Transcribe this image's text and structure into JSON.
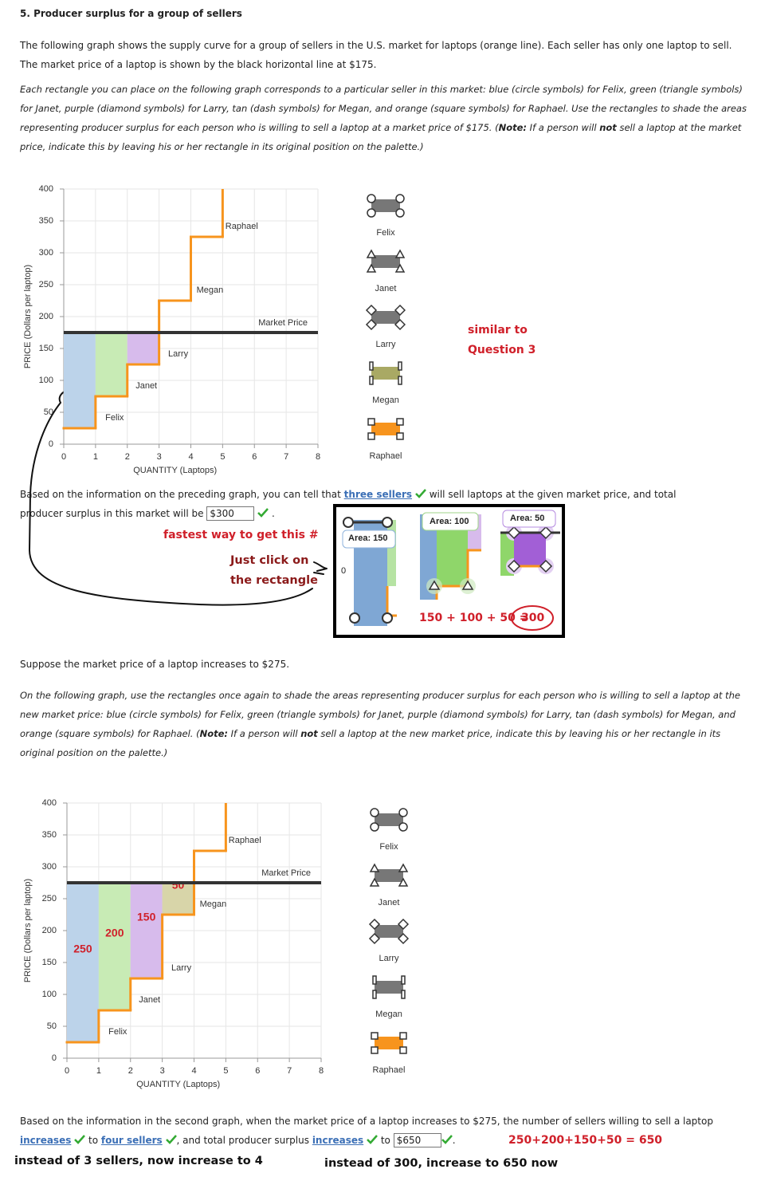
{
  "title": "5. Producer surplus for a group of sellers",
  "intro": "The following graph shows the supply curve for a group of sellers in the U.S. market for laptops (orange line). Each seller has only one laptop to sell. The market price of a laptop is shown by the black horizontal line at $175.",
  "instructions1": [
    "Each rectangle you can place on the following graph corresponds to a particular seller in this market: blue (circle symbols) for Felix, green (triangle symbols) for Janet, purple (diamond symbols) for Larry, tan (dash symbols) for Megan, and orange (square symbols) for Raphael. Use the rectangles to shade the areas representing producer surplus for each person who is willing to sell a laptop at a market price of $175. (",
    "Note:",
    " If a person will ",
    "not",
    " sell a laptop at the market price, indicate this by leaving his or her rectangle in its original position on the palette.)"
  ],
  "answer1": {
    "before": "Based on the information on the preceding graph, you can tell that",
    "sellers": "three sellers",
    "middle": "will sell laptops at the given market price, and total producer surplus in this market will be",
    "surplus": "$300",
    "end": "."
  },
  "annotations": {
    "fastest": "fastest way to get this #",
    "click": [
      "Just click on",
      "the rectangle"
    ],
    "similar": [
      "similar to",
      "Question 3"
    ],
    "sum2": "250+200+150+50 = 650",
    "note_sellers": "instead of 3 sellers, now increase to 4",
    "note_surplus": "instead of 300, increase to 650 now"
  },
  "inset": {
    "areas": [
      "Area: 150",
      "Area: 100",
      "Area: 50"
    ],
    "axis_zero": "0",
    "sum": "150 + 100 + 50 =",
    "total": "300"
  },
  "suppose": "Suppose the market price of a laptop increases to $275.",
  "instructions2": [
    "On the following graph, use the rectangles once again to shade the areas representing producer surplus for each person who is willing to sell a laptop at the new market price: blue (circle symbols) for Felix, green (triangle symbols) for Janet, purple (diamond symbols) for Larry, tan (dash symbols) for Megan, and orange (square symbols) for Raphael. (",
    "Note:",
    " If a person will ",
    "not",
    " sell a laptop at the new market price, indicate this by leaving his or her rectangle in its original position on the palette.)"
  ],
  "answer2": {
    "before": "Based on the information in the second graph, when the market price of a laptop increases to $275, the number of sellers willing to sell a laptop",
    "change1": "increases",
    "to1": "to",
    "sellers": "four sellers",
    "middle": ", and total producer surplus",
    "change2": "increases",
    "to2": "to",
    "surplus": "$650",
    "end": "."
  },
  "chart_data": [
    {
      "type": "supply-step",
      "x_label": "QUANTITY (Laptops)",
      "y_label": "PRICE (Dollars per laptop)",
      "xlim": [
        0,
        8
      ],
      "ylim": [
        0,
        400
      ],
      "xticks": [
        0,
        1,
        2,
        3,
        4,
        5,
        6,
        7,
        8
      ],
      "yticks": [
        0,
        50,
        100,
        150,
        200,
        250,
        300,
        350,
        400
      ],
      "grid": true,
      "step_color": "#f7941d",
      "sellers": [
        {
          "name": "Felix",
          "price": 25,
          "color": "#bcd3ea"
        },
        {
          "name": "Janet",
          "price": 75,
          "color": "#c8ebb5"
        },
        {
          "name": "Larry",
          "price": 125,
          "color": "#d7bbec"
        },
        {
          "name": "Megan",
          "price": 225,
          "color": "#d8d5a9"
        },
        {
          "name": "Raphael",
          "price": 325,
          "color": "#f7a84a"
        }
      ],
      "market_price": {
        "label": "Market Price",
        "value": 175
      },
      "palette_colors": [
        "#777777",
        "#777777",
        "#777777",
        "#a9a964",
        "#f7941d"
      ]
    },
    {
      "type": "supply-step",
      "x_label": "QUANTITY (Laptops)",
      "y_label": "PRICE (Dollars per laptop)",
      "xlim": [
        0,
        8
      ],
      "ylim": [
        0,
        400
      ],
      "xticks": [
        0,
        1,
        2,
        3,
        4,
        5,
        6,
        7,
        8
      ],
      "yticks": [
        0,
        50,
        100,
        150,
        200,
        250,
        300,
        350,
        400
      ],
      "grid": true,
      "step_color": "#f7941d",
      "sellers": [
        {
          "name": "Felix",
          "price": 25,
          "color": "#bcd3ea"
        },
        {
          "name": "Janet",
          "price": 75,
          "color": "#c8ebb5"
        },
        {
          "name": "Larry",
          "price": 125,
          "color": "#d7bbec"
        },
        {
          "name": "Megan",
          "price": 225,
          "color": "#d8d5a9"
        },
        {
          "name": "Raphael",
          "price": 325,
          "color": "#f7a84a"
        }
      ],
      "market_price": {
        "label": "Market Price",
        "value": 275
      },
      "area_labels": [
        250,
        200,
        150,
        50
      ],
      "palette_colors": [
        "#777777",
        "#777777",
        "#777777",
        "#777777",
        "#f7941d"
      ]
    }
  ]
}
